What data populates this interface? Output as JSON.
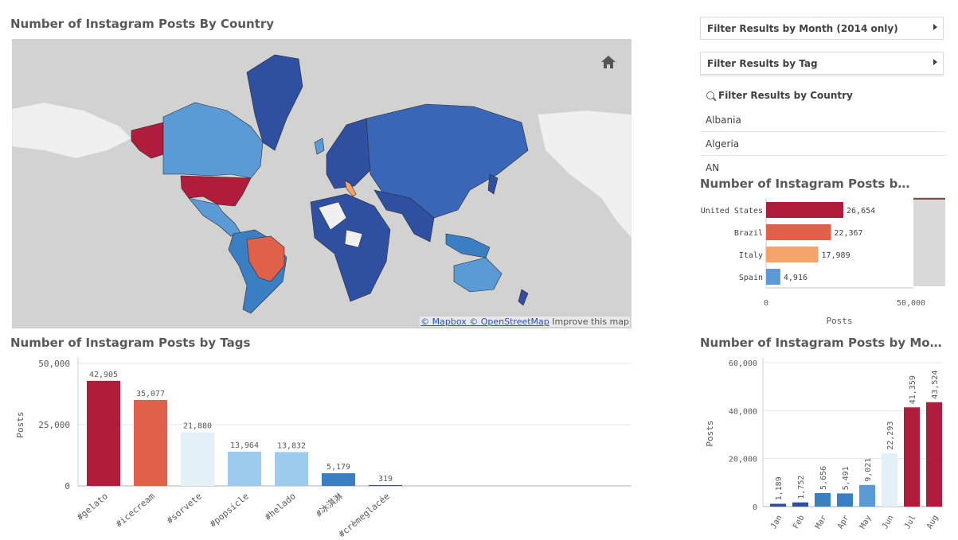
{
  "map": {
    "title": "Number of Instagram Posts By Country",
    "attribution_links": "© Mapbox © OpenStreetMap",
    "attribution_text": "Improve this map",
    "colors": {
      "ocean": "#d2d2d2",
      "no_data": "#f0f0f0",
      "top": "#b01c3c",
      "second": "#e0604a",
      "third": "#f4a36a",
      "mid": "#5b9bd5",
      "low": "#2f4fa0"
    }
  },
  "filters": {
    "month_label": "Filter Results by Month (2014 only)",
    "tag_label": "Filter Results by Tag",
    "country_label": "Filter Results by Country",
    "country_items": [
      "Albania",
      "Algeria",
      "AN"
    ]
  },
  "country_chart": {
    "title": "Number of Instagram Posts by Cou...",
    "x_axis_label": "Posts",
    "x_ticks": [
      "0",
      "50,000"
    ],
    "chart_data": {
      "type": "bar",
      "orientation": "horizontal",
      "categories": [
        "United States",
        "Brazil",
        "Italy",
        "Spain"
      ],
      "values": [
        26654,
        22367,
        17989,
        4916
      ],
      "value_labels": [
        "26,654",
        "22,367",
        "17,989",
        "4,916"
      ],
      "colors": [
        "#b01c3c",
        "#e0604a",
        "#f4a36a",
        "#5b9bd5"
      ],
      "xlim": [
        0,
        50000
      ]
    }
  },
  "tags_chart": {
    "title": "Number of Instagram Posts by Tags",
    "y_axis_label": "Posts",
    "y_ticks": [
      "50,000",
      "25,000",
      "0"
    ],
    "chart_data": {
      "type": "bar",
      "categories": [
        "#gelato",
        "#icecream",
        "#sorvete",
        "#popsicle",
        "#helado",
        "#冰淇淋",
        "#crèmeglacée"
      ],
      "values": [
        42905,
        35077,
        21880,
        13964,
        13832,
        5179,
        319
      ],
      "value_labels": [
        "42,905",
        "35,077",
        "21,880",
        "13,964",
        "13,832",
        "5,179",
        "319"
      ],
      "colors": [
        "#b01c3c",
        "#e0604a",
        "#e4f0f8",
        "#9ccbee",
        "#9ccbee",
        "#3a7fc4",
        "#2f4fa0"
      ],
      "ylim": [
        0,
        50000
      ]
    }
  },
  "month_chart": {
    "title": "Number of Instagram Posts by Month",
    "y_axis_label": "Posts",
    "y_ticks": [
      "60,000",
      "40,000",
      "20,000",
      "0"
    ],
    "chart_data": {
      "type": "bar",
      "categories": [
        "Jan",
        "Feb",
        "Mar",
        "Apr",
        "May",
        "Jun",
        "Jul",
        "Aug"
      ],
      "values": [
        1189,
        1752,
        5656,
        5491,
        9021,
        22293,
        41359,
        43524
      ],
      "value_labels": [
        "1,189",
        "1,752",
        "5,656",
        "5,491",
        "9,021",
        "22,293",
        "41,359",
        "43,524"
      ],
      "colors": [
        "#2f4fa0",
        "#2f4fa0",
        "#3a7fc4",
        "#3a7fc4",
        "#5b9bd5",
        "#e4f0f8",
        "#b01c3c",
        "#b01c3c"
      ],
      "ylim": [
        0,
        60000
      ]
    }
  }
}
